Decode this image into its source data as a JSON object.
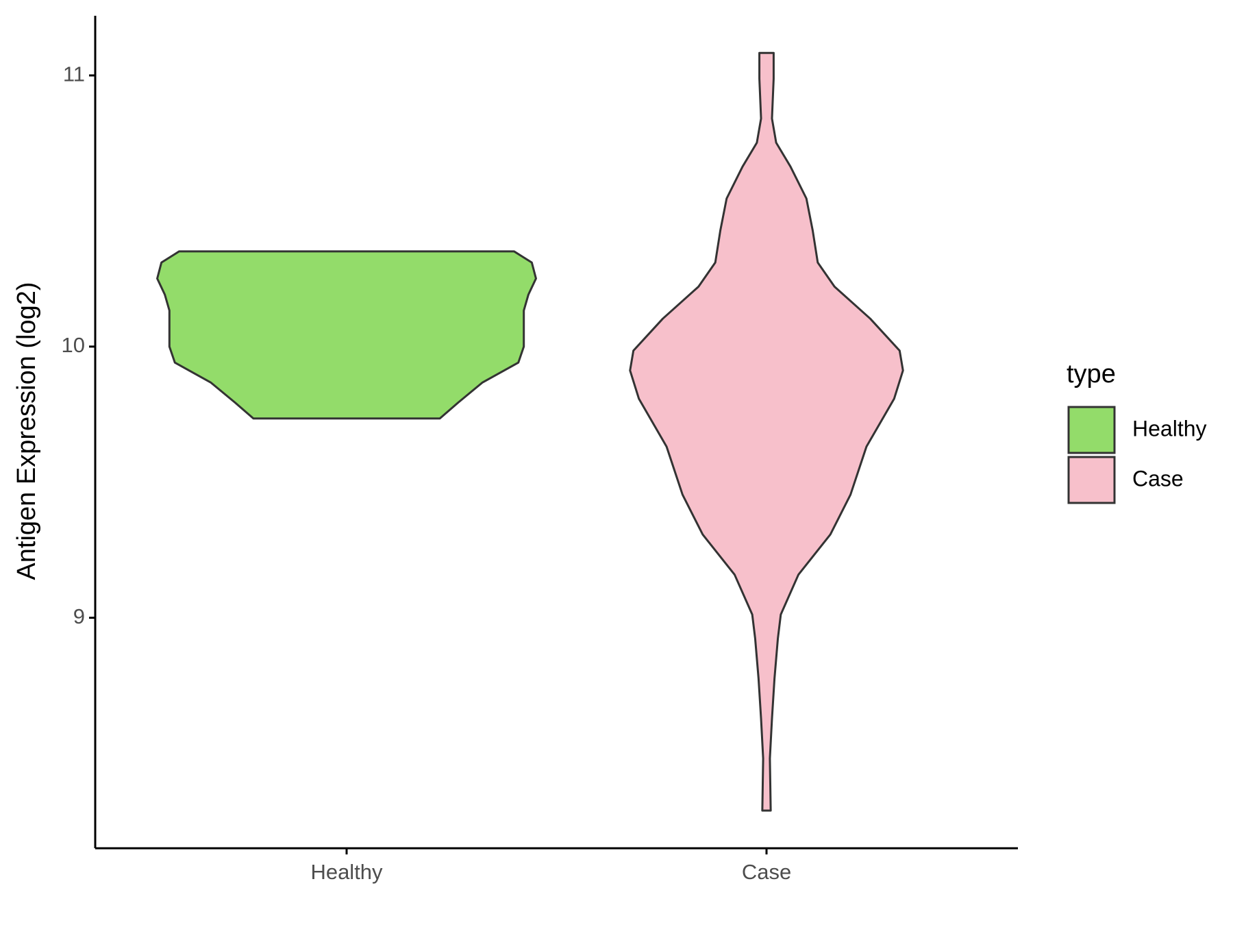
{
  "chart_data": {
    "type": "violin",
    "y_label": "Antigen Expression (log2)",
    "categories": [
      "Healthy",
      "Case"
    ],
    "legend_title": "type",
    "legend_position": "right",
    "series": [
      {
        "name": "Healthy",
        "color": "#93dc6a",
        "y": [
          10.351,
          10.31,
          10.251,
          10.192,
          10.133,
          10.074,
          10.0,
          9.941,
          9.867,
          9.794,
          9.735
        ],
        "width": [
          0.399,
          0.441,
          0.451,
          0.433,
          0.422,
          0.422,
          0.422,
          0.409,
          0.323,
          0.266,
          0.222
        ]
      },
      {
        "name": "Case",
        "color": "#f7c0cb",
        "y": [
          11.083,
          10.988,
          10.841,
          10.752,
          10.664,
          10.546,
          10.428,
          10.31,
          10.221,
          10.103,
          9.985,
          9.912,
          9.808,
          9.631,
          9.454,
          9.307,
          9.159,
          9.012,
          8.923,
          8.776,
          8.628,
          8.481,
          8.289
        ],
        "width": [
          0.017,
          0.017,
          0.013,
          0.023,
          0.057,
          0.095,
          0.11,
          0.122,
          0.162,
          0.247,
          0.317,
          0.325,
          0.304,
          0.238,
          0.2,
          0.152,
          0.076,
          0.034,
          0.027,
          0.019,
          0.013,
          0.008,
          0.01
        ]
      }
    ],
    "ylim": [
      8.15,
      11.22
    ],
    "yticks": [
      9,
      10,
      11
    ],
    "grid": false
  }
}
